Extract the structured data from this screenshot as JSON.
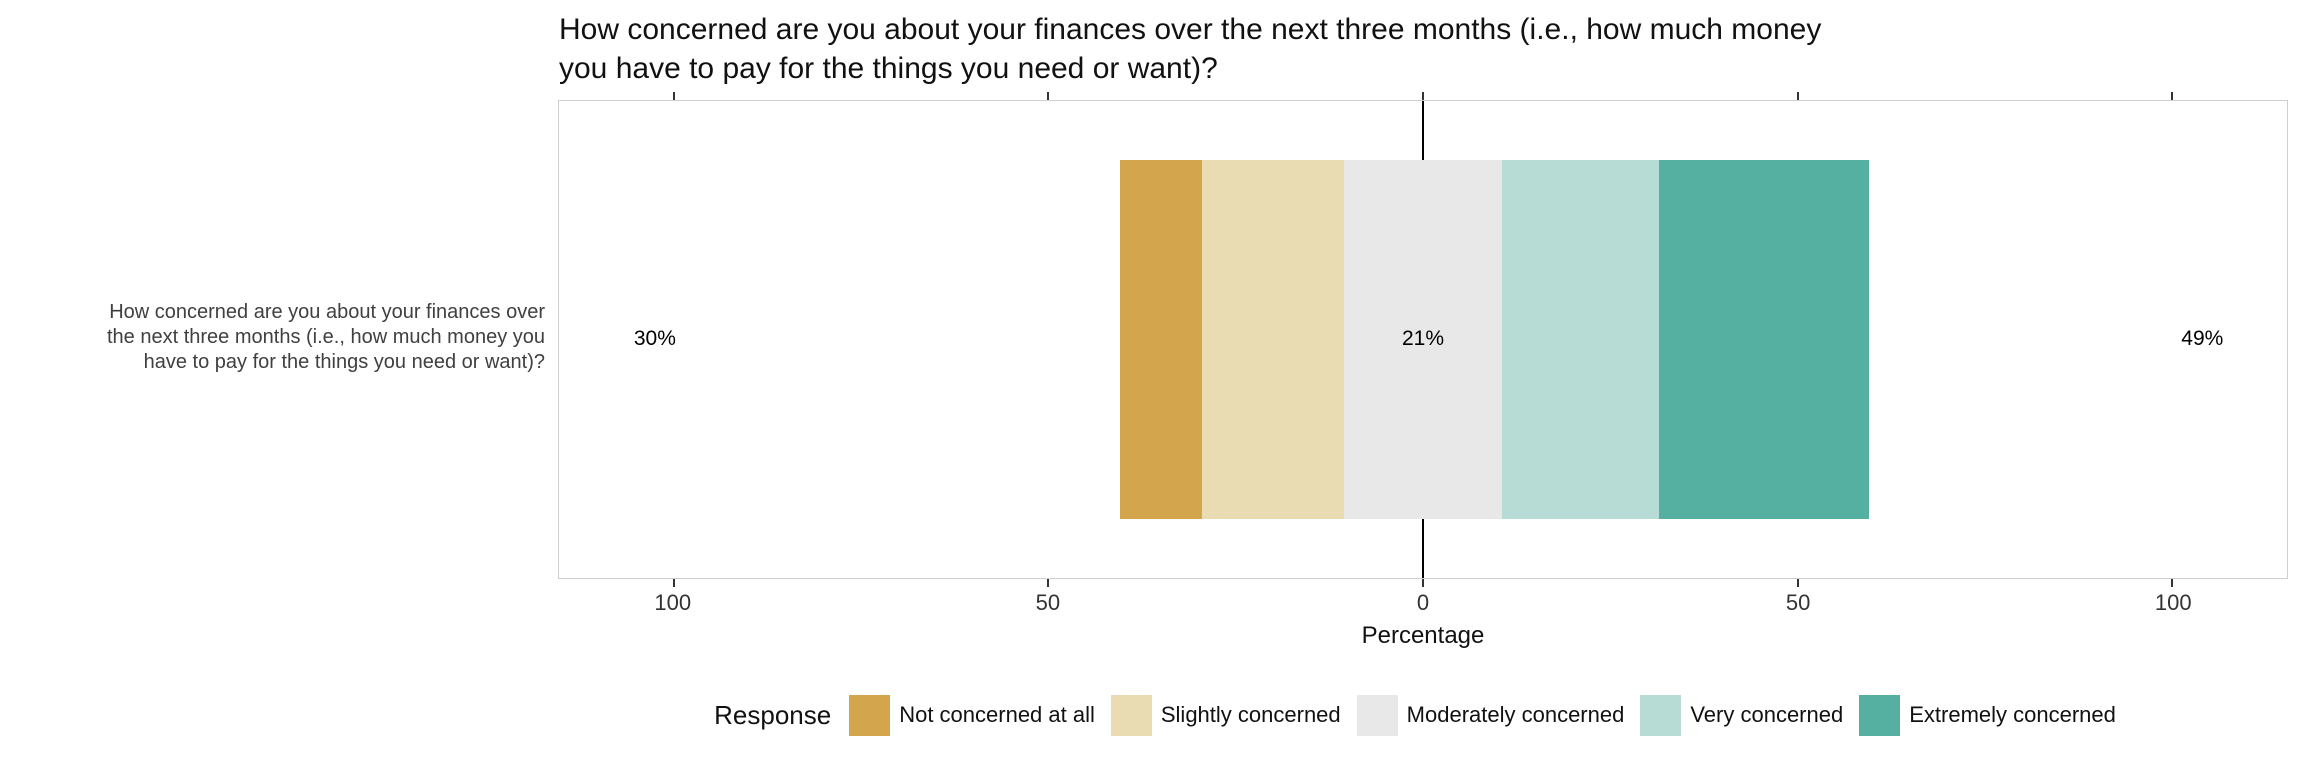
{
  "title": {
    "lines": [
      "How concerned are you about your finances over the next three months (i.e., how much money",
      "you have to pay for the things you need or want)?"
    ]
  },
  "y_axis_label": {
    "lines": [
      "How concerned are you about your finances over",
      "the next three months (i.e., how much money you",
      "have to pay for the things you need or want)?"
    ]
  },
  "chart_data": {
    "type": "bar",
    "subtype": "diverging_stacked_likert",
    "title": "How concerned are you about your finances over the next three months (i.e., how much money you have to pay for the things you need or want)?",
    "category": "How concerned are you about your finances over the next three months (i.e., how much money you have to pay for the things you need or want)?",
    "series": [
      {
        "name": "Not concerned at all",
        "value": 11,
        "color": "#d3a64e"
      },
      {
        "name": "Slightly concerned",
        "value": 19,
        "color": "#e9dcb2"
      },
      {
        "name": "Moderately concerned",
        "value": 21,
        "color": "#e8e8e8"
      },
      {
        "name": "Very concerned",
        "value": 21,
        "color": "#b7dcd5"
      },
      {
        "name": "Extremely concerned",
        "value": 28,
        "color": "#55b0a1"
      }
    ],
    "neutral_centered_on_zero": true,
    "totals": {
      "left": "30%",
      "center": "21%",
      "right": "49%"
    },
    "xlabel": "Percentage",
    "axis": {
      "ticks": [
        -100,
        -50,
        0,
        50,
        100
      ],
      "tick_labels": [
        "100",
        "50",
        "0",
        "50",
        "100"
      ],
      "range": [
        -115.3,
        115.3
      ],
      "grid": false
    },
    "legend_title": "Response",
    "legend_position": "bottom"
  }
}
